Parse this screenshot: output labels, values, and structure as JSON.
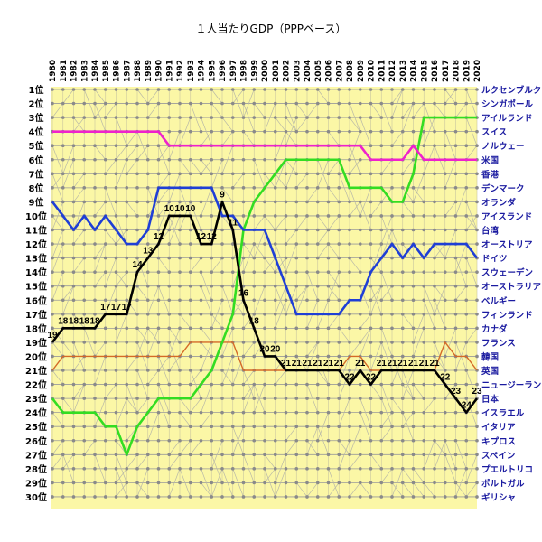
{
  "chart_data": {
    "type": "line",
    "title": "１人当たりGDP（PPPベース）",
    "years": [
      "1980",
      "1981",
      "1982",
      "1983",
      "1984",
      "1985",
      "1986",
      "1987",
      "1988",
      "1989",
      "1990",
      "1991",
      "1992",
      "1993",
      "1994",
      "1995",
      "1996",
      "1997",
      "1998",
      "1999",
      "2000",
      "2001",
      "2002",
      "2003",
      "2004",
      "2005",
      "2006",
      "2007",
      "2008",
      "2009",
      "2010",
      "2011",
      "2012",
      "2013",
      "2014",
      "2015",
      "2016",
      "2017",
      "2018",
      "2019",
      "2020"
    ],
    "rank_unit": "位",
    "rank_count": 30,
    "countries": [
      "ルクセンブルク",
      "シンガポール",
      "アイルランド",
      "スイス",
      "ノルウェー",
      "米国",
      "香港",
      "デンマーク",
      "オランダ",
      "アイスランド",
      "台湾",
      "オーストリア",
      "ドイツ",
      "スウェーデン",
      "オーストラリア",
      "ベルギー",
      "フィンランド",
      "カナダ",
      "フランス",
      "韓国",
      "英国",
      "ニュージーランド",
      "日本",
      "イスラエル",
      "イタリア",
      "キプロス",
      "スペイン",
      "プエルトリコ",
      "ポルトガル",
      "ギリシャ"
    ],
    "series": [
      {
        "name": "日本",
        "color": "#000000",
        "values": [
          19,
          18,
          18,
          18,
          18,
          17,
          17,
          17,
          14,
          13,
          12,
          10,
          10,
          10,
          12,
          12,
          9,
          11,
          16,
          18,
          20,
          20,
          21,
          21,
          21,
          21,
          21,
          21,
          22,
          21,
          22,
          21,
          21,
          21,
          21,
          21,
          21,
          22,
          23,
          24,
          23
        ],
        "labels": [
          "19",
          "18",
          "18",
          "18",
          "18",
          "17",
          "17",
          "17",
          "14",
          "13",
          "12",
          "10",
          "10",
          "10",
          "12",
          "12",
          "9",
          "11",
          "16",
          "18",
          "20",
          "20",
          "21",
          "21",
          "21",
          "21",
          "21",
          "21",
          "22",
          "21",
          "22",
          "21",
          "21",
          "21",
          "21",
          "21",
          "21",
          "22",
          "23",
          "24",
          "23"
        ]
      },
      {
        "name": "ドイツ",
        "color": "#1f3fd6",
        "values": [
          9,
          10,
          11,
          10,
          11,
          10,
          11,
          12,
          12,
          11,
          8,
          8,
          8,
          8,
          8,
          8,
          10,
          10,
          11,
          11,
          11,
          13,
          15,
          17,
          17,
          17,
          17,
          17,
          16,
          16,
          14,
          13,
          12,
          13,
          12,
          13,
          12,
          12,
          12,
          12,
          13
        ]
      },
      {
        "name": "アイルランド",
        "color": "#33dd22",
        "values": [
          23,
          24,
          24,
          24,
          24,
          25,
          25,
          27,
          25,
          24,
          23,
          23,
          23,
          23,
          22,
          21,
          19,
          17,
          11,
          9,
          8,
          7,
          6,
          6,
          6,
          6,
          6,
          6,
          8,
          8,
          8,
          8,
          9,
          9,
          7,
          3,
          3,
          3,
          3,
          3,
          3
        ]
      },
      {
        "name": "米国",
        "color": "#ee22cc",
        "values": [
          4,
          4,
          4,
          4,
          4,
          4,
          4,
          4,
          4,
          4,
          4,
          5,
          5,
          5,
          5,
          5,
          5,
          5,
          5,
          5,
          5,
          5,
          5,
          5,
          5,
          5,
          5,
          5,
          5,
          5,
          6,
          6,
          6,
          6,
          5,
          6,
          6,
          6,
          6,
          6,
          6
        ]
      },
      {
        "name": "英国",
        "color": "#d46a28",
        "values": [
          21,
          20,
          20,
          20,
          20,
          20,
          20,
          20,
          20,
          20,
          20,
          20,
          20,
          19,
          19,
          19,
          19,
          19,
          21,
          21,
          21,
          21,
          21,
          21,
          21,
          21,
          21,
          21,
          20,
          20,
          21,
          21,
          21,
          21,
          21,
          21,
          21,
          19,
          20,
          20,
          21
        ]
      }
    ]
  }
}
